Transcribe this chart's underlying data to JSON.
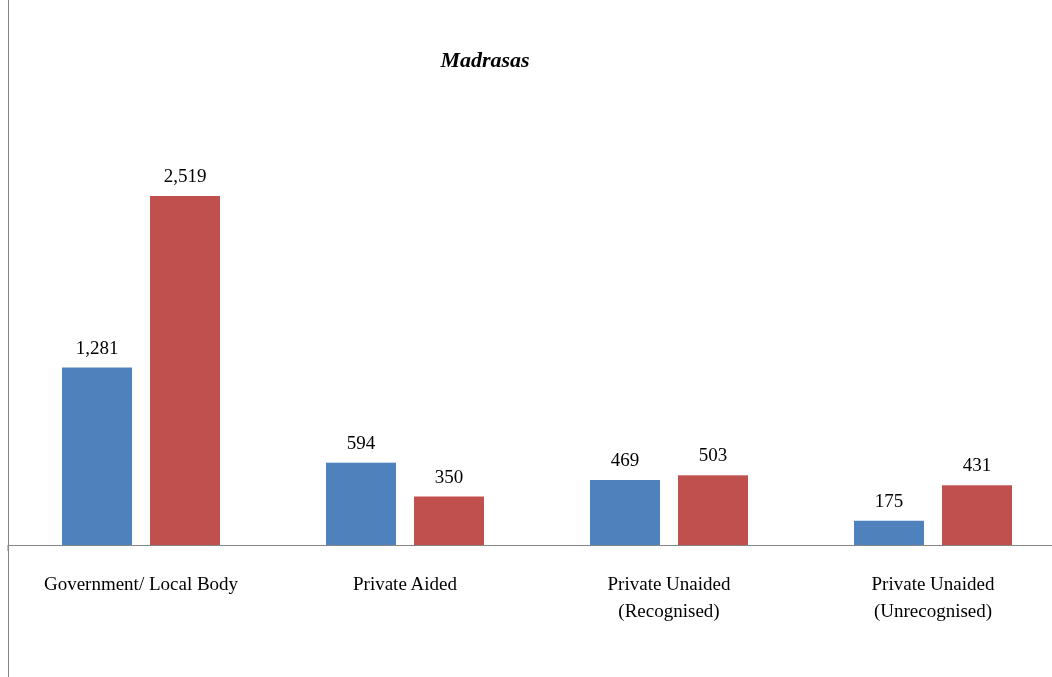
{
  "chart_data": {
    "type": "bar",
    "title": "Madrasas",
    "categories": [
      "Government/ Local Body",
      "Private Aided",
      "Private Unaided (Recognised)",
      "Private Unaided (Unrecognised)"
    ],
    "series": [
      {
        "color": "#4f81bd",
        "values": [
          1281,
          594,
          469,
          175
        ],
        "value_labels": [
          "1,281",
          "594",
          "469",
          "175"
        ]
      },
      {
        "color": "#c0504d",
        "values": [
          2519,
          350,
          503,
          431
        ],
        "value_labels": [
          "2,519",
          "350",
          "503",
          "431"
        ]
      }
    ]
  }
}
